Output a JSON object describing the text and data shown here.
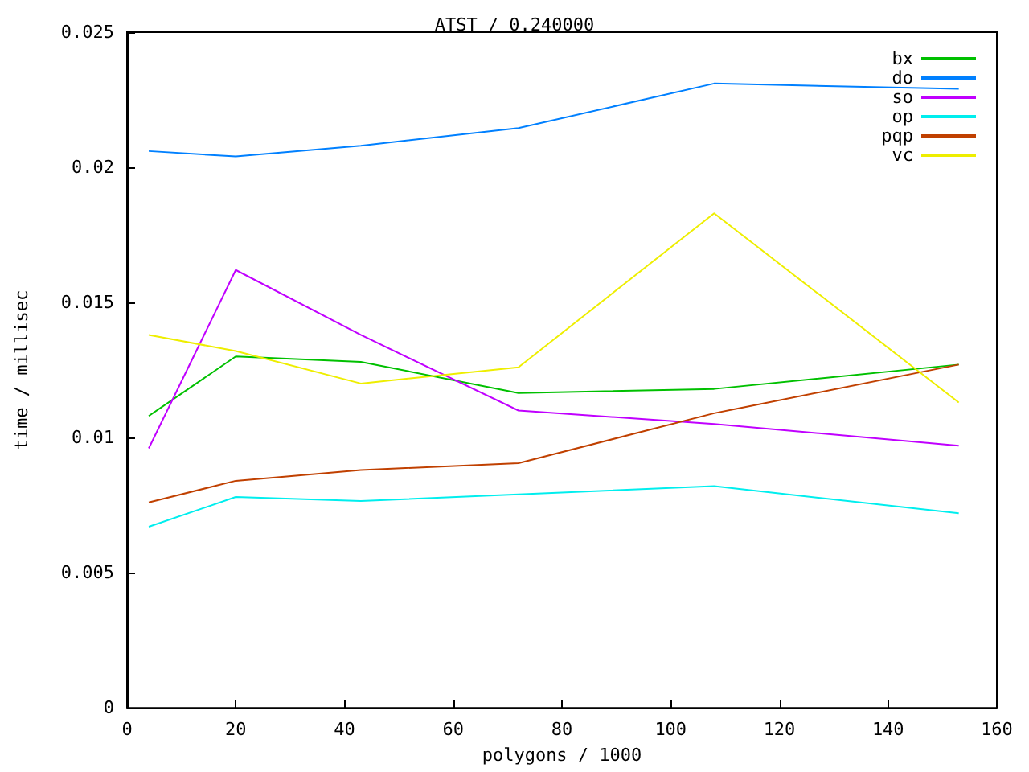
{
  "chart_data": {
    "type": "line",
    "title": "ATST / 0.240000",
    "xlabel": "polygons / 1000",
    "ylabel": "time / millisec",
    "x": [
      4,
      20,
      43,
      72,
      108,
      153
    ],
    "series": [
      {
        "name": "bx",
        "color": "#00c000",
        "values": [
          0.0108,
          0.013,
          0.0128,
          0.01165,
          0.0118,
          0.0127
        ]
      },
      {
        "name": "do",
        "color": "#0080ff",
        "values": [
          0.0206,
          0.0204,
          0.0208,
          0.02145,
          0.0231,
          0.0229
        ]
      },
      {
        "name": "so",
        "color": "#c000ff",
        "values": [
          0.0096,
          0.0162,
          0.0138,
          0.011,
          0.0105,
          0.0097
        ]
      },
      {
        "name": "op",
        "color": "#00eeee",
        "values": [
          0.0067,
          0.0078,
          0.00765,
          0.0079,
          0.0082,
          0.0072
        ]
      },
      {
        "name": "pqp",
        "color": "#c04000",
        "values": [
          0.0076,
          0.0084,
          0.0088,
          0.00905,
          0.0109,
          0.0127
        ]
      },
      {
        "name": "vc",
        "color": "#eeee00",
        "values": [
          0.0138,
          0.0132,
          0.012,
          0.0126,
          0.0183,
          0.0113
        ]
      }
    ],
    "xlim": [
      0,
      160
    ],
    "xticks": [
      0,
      20,
      40,
      60,
      80,
      100,
      120,
      140,
      160
    ],
    "ylim": [
      0,
      0.025
    ],
    "yticks": [
      0,
      0.005,
      0.01,
      0.015,
      0.02,
      0.025
    ],
    "grid": false,
    "legend": "top right",
    "marker": "none",
    "line_style": "solid"
  }
}
